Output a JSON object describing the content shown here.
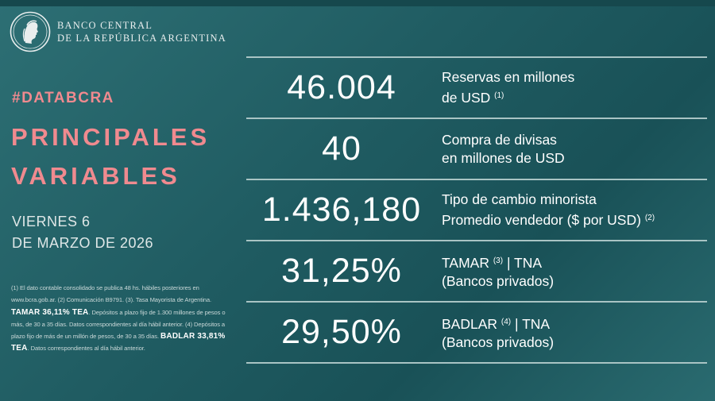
{
  "header": {
    "bank_line1": "BANCO CENTRAL",
    "bank_line2": "DE LA REPÚBLICA ARGENTINA",
    "seal_icon": "bcra-seal-icon"
  },
  "hashtag": "#DATABCRA",
  "title": {
    "line1": "PRINCIPALES",
    "line2": "VARIABLES"
  },
  "date": {
    "line1": "VIERNES 6",
    "line2": "DE MARZO DE 2026"
  },
  "footnote": {
    "part1": "(1) El dato contable consolidado se publica 48 hs. hábiles posteriores en www.bcra.gob.ar. (2) Comunicación B9791. (3). Tasa Mayorista de Argentina.",
    "tamar_bold": "TAMAR 36,11% TEA",
    "part2": ". Depósitos a plazo fijo de 1.300 millones de pesos o más, de 30 a 35 días. Datos correspondientes al día hábil anterior. (4) Depósitos a plazo fijo de más de un millón de pesos, de 30 a 35 días.",
    "badlar_bold": "BADLAR 33,81% TEA",
    "part3": ". Datos correspondientes al día hábil anterior."
  },
  "stats": [
    {
      "value": "46.004",
      "label_line1": "Reservas en millones",
      "label_line2": "de USD",
      "note2": "(1)"
    },
    {
      "value": "40",
      "label_line1": "Compra de divisas",
      "label_line2": "en millones de USD"
    },
    {
      "value": "1.436,180",
      "label_line1": "Tipo de cambio minorista",
      "label_line2": "Promedio vendedor ($ por USD)",
      "note2": "(2)"
    },
    {
      "value": "31,25%",
      "label_pre": "TAMAR",
      "note1": "(3)",
      "label_post": "| TNA",
      "label_line2": "(Bancos privados)"
    },
    {
      "value": "29,50%",
      "label_pre": "BADLAR",
      "note1": "(4)",
      "label_post": "| TNA",
      "label_line2": "(Bancos privados)"
    }
  ],
  "colors": {
    "background": "#1f5b61",
    "accent": "#f08a8f",
    "divider": "#a9c4c4"
  }
}
